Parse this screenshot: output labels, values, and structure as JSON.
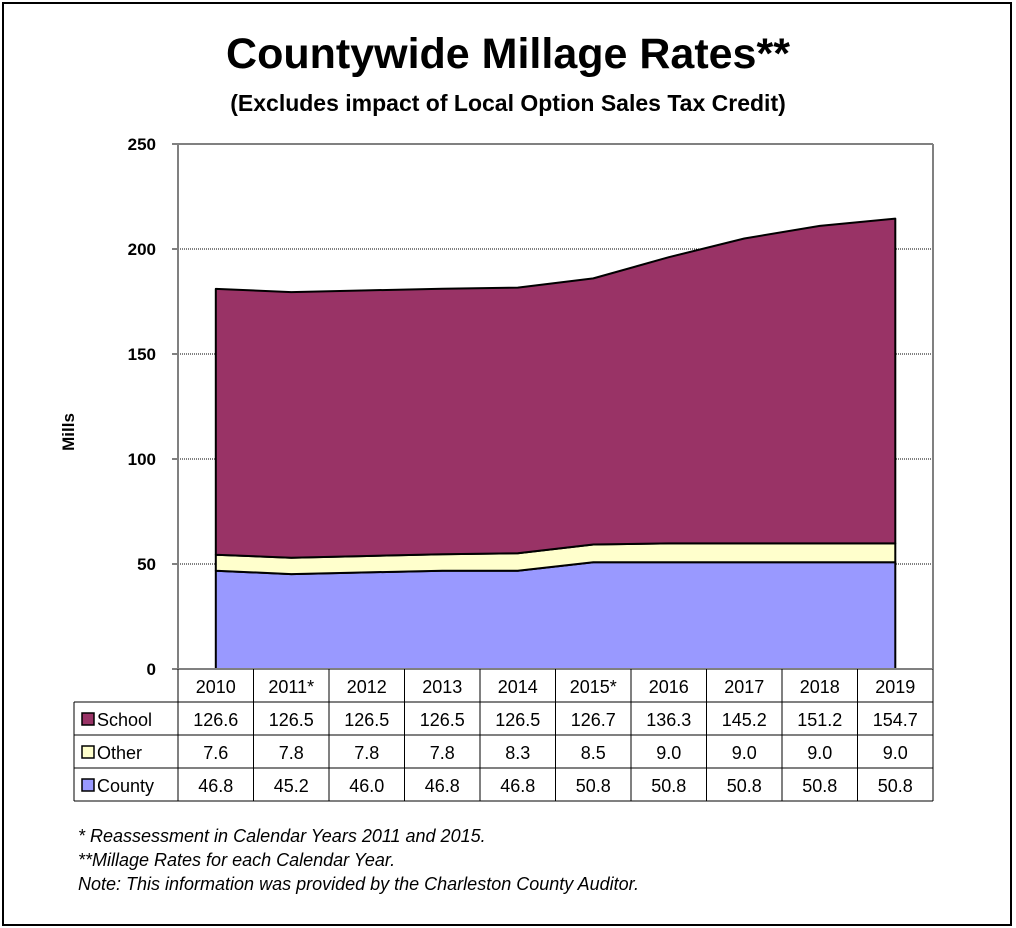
{
  "title": "Countywide Millage Rates**",
  "subtitle": "(Excludes impact of Local Option Sales Tax Credit)",
  "notes": [
    "* Reassessment in Calendar Years 2011 and 2015.",
    "**Millage Rates for each Calendar Year.",
    "Note: This information was provided by the Charleston County Auditor."
  ],
  "chart_data": {
    "type": "area",
    "stacked": true,
    "categories": [
      "2010",
      "2011*",
      "2012",
      "2013",
      "2014",
      "2015*",
      "2016",
      "2017",
      "2018",
      "2019"
    ],
    "ylabel": "Mills",
    "ylim": [
      0,
      250
    ],
    "yticks": [
      0,
      50,
      100,
      150,
      200,
      250
    ],
    "grid": true,
    "series": [
      {
        "name": "County",
        "color": "#9999ff",
        "values": [
          46.8,
          45.2,
          46.0,
          46.8,
          46.8,
          50.8,
          50.8,
          50.8,
          50.8,
          50.8
        ]
      },
      {
        "name": "Other",
        "color": "#ffffcc",
        "values": [
          7.6,
          7.8,
          7.8,
          7.8,
          8.3,
          8.5,
          9.0,
          9.0,
          9.0,
          9.0
        ]
      },
      {
        "name": "School",
        "color": "#993366",
        "values": [
          126.6,
          126.5,
          126.5,
          126.5,
          126.5,
          126.7,
          136.3,
          145.2,
          151.2,
          154.7
        ]
      }
    ],
    "table": {
      "row_order": [
        "School",
        "Other",
        "County"
      ],
      "value_labels": {
        "School": [
          "126.6",
          "126.5",
          "126.5",
          "126.5",
          "126.5",
          "126.7",
          "136.3",
          "145.2",
          "151.2",
          "154.7"
        ],
        "Other": [
          "7.6",
          "7.8",
          "7.8",
          "7.8",
          "8.3",
          "8.5",
          "9.0",
          "9.0",
          "9.0",
          "9.0"
        ],
        "County": [
          "46.8",
          "45.2",
          "46.0",
          "46.8",
          "46.8",
          "50.8",
          "50.8",
          "50.8",
          "50.8",
          "50.8"
        ]
      }
    }
  }
}
